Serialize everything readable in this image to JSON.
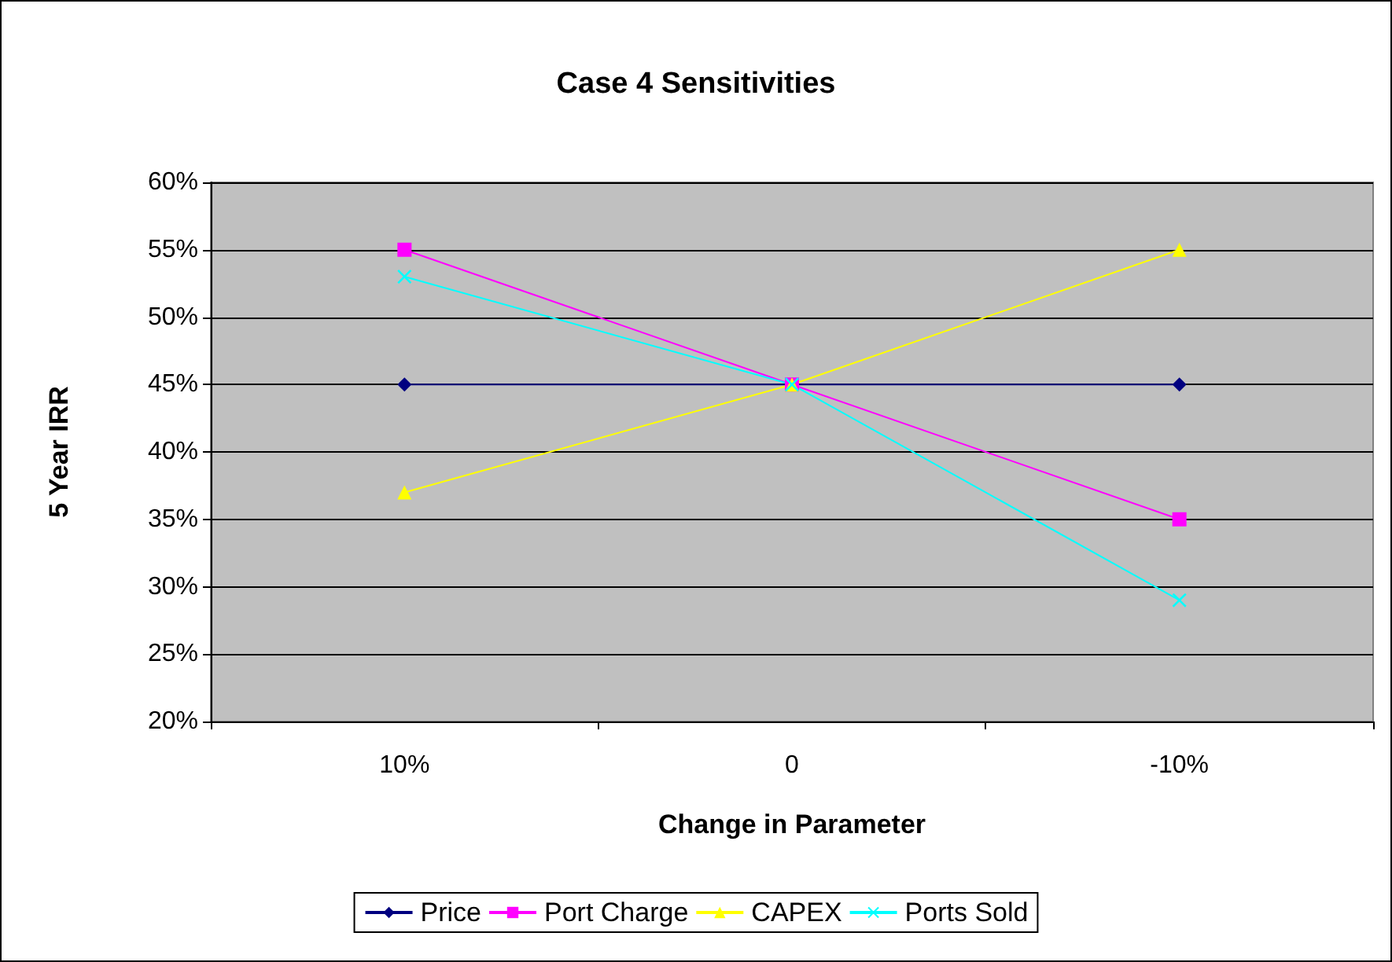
{
  "chart_data": {
    "type": "line",
    "title": "Case 4 Sensitivities",
    "xlabel": "Change in Parameter",
    "ylabel": "5 Year IRR",
    "categories": [
      "10%",
      "0",
      "-10%"
    ],
    "series": [
      {
        "name": "Price",
        "color": "#000080",
        "marker": "diamond",
        "values": [
          45,
          45,
          45
        ]
      },
      {
        "name": "Port Charge",
        "color": "#ff00ff",
        "marker": "square",
        "values": [
          55,
          45,
          35
        ]
      },
      {
        "name": "CAPEX",
        "color": "#ffff00",
        "marker": "triangle",
        "values": [
          37,
          45,
          55
        ]
      },
      {
        "name": "Ports Sold",
        "color": "#00ffff",
        "marker": "cross",
        "values": [
          53,
          45,
          29
        ]
      }
    ],
    "ylim": [
      20,
      60
    ],
    "yticks": [
      {
        "value": 20,
        "label": "20%"
      },
      {
        "value": 25,
        "label": "25%"
      },
      {
        "value": 30,
        "label": "30%"
      },
      {
        "value": 35,
        "label": "35%"
      },
      {
        "value": 40,
        "label": "40%"
      },
      {
        "value": 45,
        "label": "45%"
      },
      {
        "value": 50,
        "label": "50%"
      },
      {
        "value": 55,
        "label": "55%"
      },
      {
        "value": 60,
        "label": "60%"
      }
    ],
    "grid": "y",
    "legend": "bottom",
    "line_style": "solid"
  }
}
